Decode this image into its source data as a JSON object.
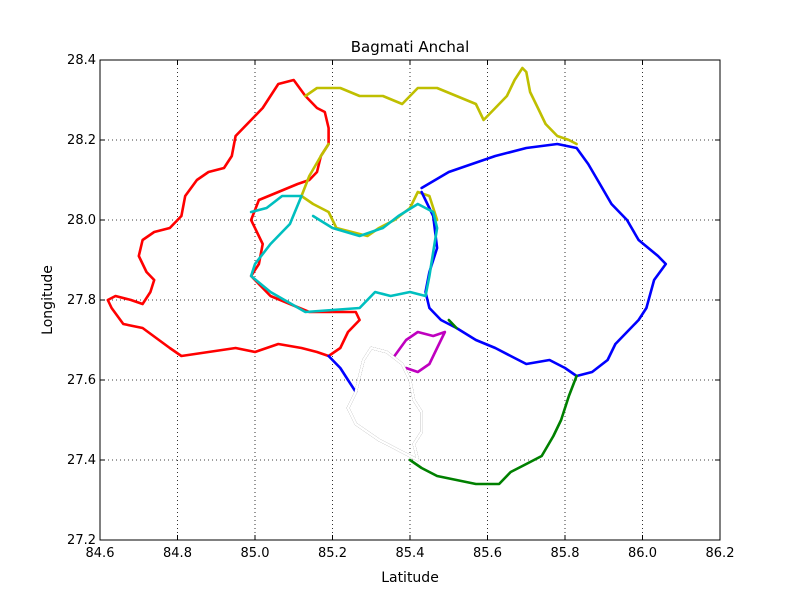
{
  "chart_data": {
    "type": "line",
    "title": "Bagmati Anchal",
    "xlabel": "Latitude",
    "ylabel": "Longitude",
    "xlim": [
      84.6,
      86.2
    ],
    "ylim": [
      27.2,
      28.4
    ],
    "xticks": [
      84.6,
      84.8,
      85.0,
      85.2,
      85.4,
      85.6,
      85.8,
      86.0,
      86.2
    ],
    "yticks": [
      27.2,
      27.4,
      27.6,
      27.8,
      28.0,
      28.2,
      28.4
    ],
    "xtick_labels": [
      "84.6",
      "84.8",
      "85.0",
      "85.2",
      "85.4",
      "85.6",
      "85.8",
      "86.0",
      "86.2"
    ],
    "ytick_labels": [
      "27.2",
      "27.4",
      "27.6",
      "27.8",
      "28.0",
      "28.2",
      "28.4"
    ],
    "grid": true,
    "legend": false,
    "series": [
      {
        "color": "#ff0000",
        "closed": true,
        "points": [
          [
            85.06,
            28.34
          ],
          [
            85.1,
            28.35
          ],
          [
            85.13,
            28.31
          ],
          [
            85.16,
            28.28
          ],
          [
            85.18,
            28.27
          ],
          [
            85.19,
            28.23
          ],
          [
            85.19,
            28.19
          ],
          [
            85.17,
            28.16
          ],
          [
            85.16,
            28.12
          ],
          [
            85.14,
            28.1
          ],
          [
            85.11,
            28.09
          ],
          [
            85.06,
            28.07
          ],
          [
            85.01,
            28.05
          ],
          [
            84.99,
            28.0
          ],
          [
            85.02,
            27.94
          ],
          [
            85.01,
            27.89
          ],
          [
            84.99,
            27.86
          ],
          [
            85.04,
            27.81
          ],
          [
            85.14,
            27.77
          ],
          [
            85.26,
            27.77
          ],
          [
            85.27,
            27.75
          ],
          [
            85.24,
            27.72
          ],
          [
            85.22,
            27.68
          ],
          [
            85.19,
            27.66
          ],
          [
            85.16,
            27.67
          ],
          [
            85.12,
            27.68
          ],
          [
            85.06,
            27.69
          ],
          [
            85.0,
            27.67
          ],
          [
            84.95,
            27.68
          ],
          [
            84.88,
            27.67
          ],
          [
            84.81,
            27.66
          ],
          [
            84.78,
            27.68
          ],
          [
            84.71,
            27.73
          ],
          [
            84.66,
            27.74
          ],
          [
            84.63,
            27.78
          ],
          [
            84.62,
            27.8
          ],
          [
            84.64,
            27.81
          ],
          [
            84.68,
            27.8
          ],
          [
            84.71,
            27.79
          ],
          [
            84.73,
            27.82
          ],
          [
            84.74,
            27.85
          ],
          [
            84.72,
            27.87
          ],
          [
            84.7,
            27.91
          ],
          [
            84.71,
            27.95
          ],
          [
            84.74,
            27.97
          ],
          [
            84.78,
            27.98
          ],
          [
            84.81,
            28.01
          ],
          [
            84.82,
            28.06
          ],
          [
            84.85,
            28.1
          ],
          [
            84.88,
            28.12
          ],
          [
            84.92,
            28.13
          ],
          [
            84.94,
            28.16
          ],
          [
            84.95,
            28.21
          ],
          [
            84.99,
            28.25
          ],
          [
            85.02,
            28.28
          ],
          [
            85.04,
            28.31
          ]
        ]
      },
      {
        "color": "#bfbf00",
        "closed": false,
        "points": [
          [
            85.13,
            28.31
          ],
          [
            85.16,
            28.33
          ],
          [
            85.22,
            28.33
          ],
          [
            85.27,
            28.31
          ],
          [
            85.33,
            28.31
          ],
          [
            85.38,
            28.29
          ],
          [
            85.42,
            28.33
          ],
          [
            85.47,
            28.33
          ],
          [
            85.52,
            28.31
          ],
          [
            85.57,
            28.29
          ],
          [
            85.59,
            28.25
          ],
          [
            85.62,
            28.28
          ],
          [
            85.65,
            28.31
          ],
          [
            85.67,
            28.35
          ],
          [
            85.69,
            28.38
          ],
          [
            85.7,
            28.37
          ],
          [
            85.71,
            28.32
          ],
          [
            85.73,
            28.28
          ],
          [
            85.75,
            28.24
          ],
          [
            85.78,
            28.21
          ],
          [
            85.81,
            28.2
          ],
          [
            85.83,
            28.19
          ]
        ]
      },
      {
        "color": "#bfbf00",
        "closed": false,
        "points": [
          [
            85.19,
            28.19
          ],
          [
            85.17,
            28.16
          ],
          [
            85.14,
            28.11
          ],
          [
            85.12,
            28.06
          ],
          [
            85.15,
            28.04
          ],
          [
            85.19,
            28.02
          ],
          [
            85.21,
            27.98
          ],
          [
            85.25,
            27.97
          ],
          [
            85.29,
            27.96
          ],
          [
            85.32,
            27.98
          ],
          [
            85.36,
            28.0
          ],
          [
            85.4,
            28.03
          ],
          [
            85.42,
            28.07
          ],
          [
            85.45,
            28.06
          ],
          [
            85.47,
            28.0
          ]
        ]
      },
      {
        "color": "#0000ff",
        "closed": false,
        "points": [
          [
            85.43,
            28.08
          ],
          [
            85.5,
            28.12
          ],
          [
            85.56,
            28.14
          ],
          [
            85.62,
            28.16
          ],
          [
            85.7,
            28.18
          ],
          [
            85.78,
            28.19
          ],
          [
            85.83,
            28.18
          ],
          [
            85.86,
            28.14
          ],
          [
            85.89,
            28.09
          ],
          [
            85.92,
            28.04
          ],
          [
            85.96,
            28.0
          ],
          [
            85.99,
            27.95
          ],
          [
            86.04,
            27.91
          ],
          [
            86.06,
            27.89
          ],
          [
            86.03,
            27.85
          ],
          [
            86.01,
            27.78
          ],
          [
            85.99,
            27.75
          ],
          [
            85.96,
            27.72
          ],
          [
            85.93,
            27.69
          ],
          [
            85.91,
            27.65
          ],
          [
            85.87,
            27.62
          ],
          [
            85.83,
            27.61
          ],
          [
            85.8,
            27.63
          ],
          [
            85.76,
            27.65
          ],
          [
            85.7,
            27.64
          ],
          [
            85.66,
            27.66
          ],
          [
            85.62,
            27.68
          ],
          [
            85.57,
            27.7
          ],
          [
            85.52,
            27.73
          ],
          [
            85.48,
            27.75
          ],
          [
            85.45,
            27.78
          ],
          [
            85.44,
            27.82
          ],
          [
            85.45,
            27.87
          ],
          [
            85.47,
            27.93
          ],
          [
            85.46,
            28.01
          ],
          [
            85.43,
            28.07
          ]
        ]
      },
      {
        "color": "#0000ff",
        "closed": false,
        "points": [
          [
            85.19,
            27.66
          ],
          [
            85.22,
            27.63
          ],
          [
            85.24,
            27.6
          ],
          [
            85.26,
            27.57
          ]
        ]
      },
      {
        "color": "#00bfbf",
        "closed": false,
        "points": [
          [
            84.99,
            28.02
          ],
          [
            85.03,
            28.03
          ],
          [
            85.07,
            28.06
          ],
          [
            85.12,
            28.06
          ],
          [
            85.09,
            27.99
          ],
          [
            85.04,
            27.94
          ],
          [
            85.0,
            27.89
          ],
          [
            84.99,
            27.86
          ],
          [
            85.04,
            27.82
          ],
          [
            85.13,
            27.77
          ],
          [
            85.27,
            27.78
          ],
          [
            85.31,
            27.82
          ],
          [
            85.35,
            27.81
          ],
          [
            85.4,
            27.82
          ],
          [
            85.44,
            27.81
          ],
          [
            85.45,
            27.86
          ],
          [
            85.46,
            27.92
          ],
          [
            85.47,
            27.98
          ],
          [
            85.46,
            28.02
          ],
          [
            85.42,
            28.04
          ],
          [
            85.37,
            28.01
          ],
          [
            85.33,
            27.98
          ],
          [
            85.27,
            27.96
          ],
          [
            85.2,
            27.98
          ],
          [
            85.15,
            28.01
          ]
        ]
      },
      {
        "color": "#008000",
        "closed": false,
        "points": [
          [
            85.83,
            27.61
          ],
          [
            85.81,
            27.56
          ],
          [
            85.79,
            27.5
          ],
          [
            85.77,
            27.46
          ],
          [
            85.74,
            27.41
          ],
          [
            85.7,
            27.39
          ],
          [
            85.66,
            27.37
          ],
          [
            85.63,
            27.34
          ],
          [
            85.57,
            27.34
          ],
          [
            85.52,
            27.35
          ],
          [
            85.47,
            27.36
          ],
          [
            85.43,
            27.38
          ],
          [
            85.4,
            27.4
          ]
        ]
      },
      {
        "color": "#008000",
        "closed": false,
        "points": [
          [
            85.5,
            27.75
          ],
          [
            85.52,
            27.73
          ]
        ]
      },
      {
        "color": "#bf00bf",
        "closed": false,
        "points": [
          [
            85.36,
            27.66
          ],
          [
            85.39,
            27.7
          ],
          [
            85.42,
            27.72
          ],
          [
            85.46,
            27.71
          ],
          [
            85.49,
            27.72
          ],
          [
            85.47,
            27.68
          ],
          [
            85.45,
            27.64
          ],
          [
            85.42,
            27.62
          ],
          [
            85.39,
            27.63
          ]
        ]
      },
      {
        "color": "#000000",
        "closed": true,
        "double": true,
        "points": [
          [
            85.3,
            27.68
          ],
          [
            85.34,
            27.67
          ],
          [
            85.38,
            27.64
          ],
          [
            85.4,
            27.6
          ],
          [
            85.41,
            27.55
          ],
          [
            85.43,
            27.52
          ],
          [
            85.43,
            27.47
          ],
          [
            85.41,
            27.44
          ],
          [
            85.42,
            27.4
          ],
          [
            85.38,
            27.42
          ],
          [
            85.34,
            27.44
          ],
          [
            85.32,
            27.45
          ],
          [
            85.29,
            27.47
          ],
          [
            85.26,
            27.49
          ],
          [
            85.24,
            27.53
          ],
          [
            85.26,
            27.57
          ],
          [
            85.27,
            27.61
          ],
          [
            85.28,
            27.65
          ]
        ]
      }
    ]
  }
}
